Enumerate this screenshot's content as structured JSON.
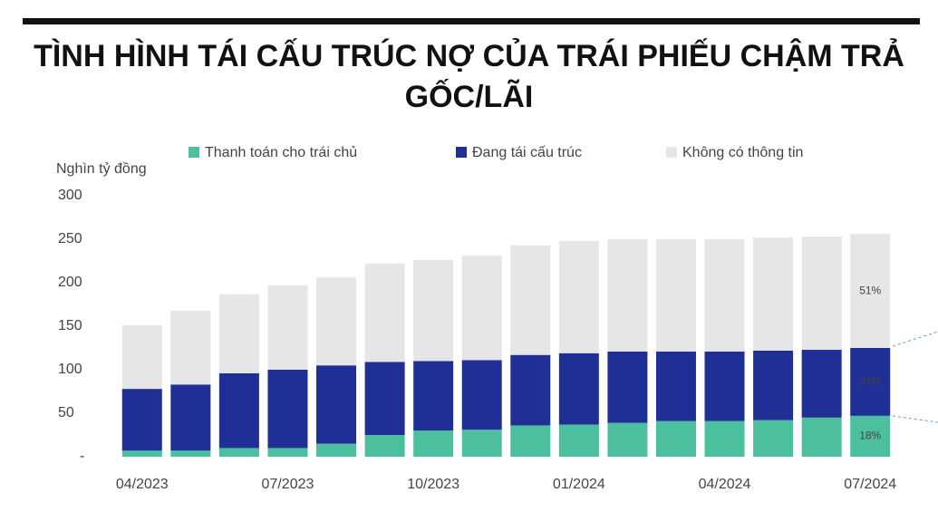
{
  "chart_data": {
    "type": "stacked_bar",
    "title": "TÌNH HÌNH TÁI CẤU TRÚC NỢ CỦA TRÁI PHIẾU CHẬM TRẢ GỐC/LÃI",
    "y_label": "Nghìn tỷ đồng",
    "categories": [
      "04/2023",
      null,
      null,
      "07/2023",
      null,
      null,
      "10/2023",
      null,
      null,
      "01/2024",
      null,
      null,
      "04/2024",
      null,
      null,
      "07/2024"
    ],
    "series": [
      {
        "name": "Thanh toán cho trái chủ",
        "color": "#4cbf9f",
        "values": [
          7,
          7,
          10,
          10,
          15,
          25,
          30,
          31,
          36,
          37,
          39,
          41,
          41,
          42,
          45,
          47
        ]
      },
      {
        "name": "Đang tái cấu trúc",
        "color": "#1f2f96",
        "values": [
          71,
          76,
          86,
          90,
          90,
          84,
          80,
          80,
          81,
          82,
          82,
          80,
          80,
          80,
          78,
          78
        ]
      },
      {
        "name": "Không có thông tin",
        "color": "#e6e6e8",
        "values": [
          73,
          85,
          91,
          97,
          101,
          113,
          116,
          120,
          126,
          129,
          129,
          129,
          129,
          130,
          130,
          131
        ]
      }
    ],
    "annotations": [
      "18%",
      "31%",
      "51%"
    ],
    "ylim": [
      0,
      300
    ],
    "yticks": [
      {
        "value": 0,
        "label": "-"
      },
      50,
      100,
      150,
      200,
      250,
      300
    ]
  }
}
